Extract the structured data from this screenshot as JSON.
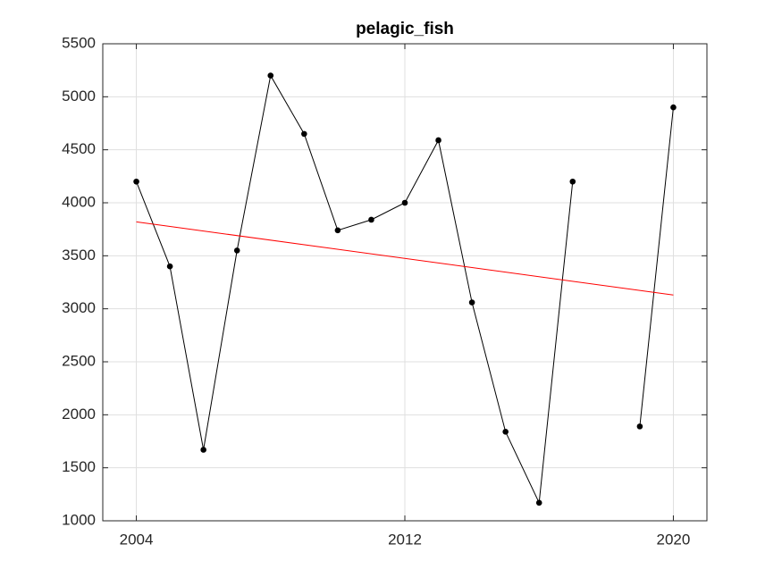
{
  "chart_data": {
    "type": "line",
    "title": "pelagic_fish",
    "x": [
      2004,
      2005,
      2006,
      2007,
      2008,
      2009,
      2010,
      2011,
      2012,
      2013,
      2014,
      2015,
      2016,
      2017,
      2018,
      2019,
      2020
    ],
    "series": [
      {
        "color": "#000000",
        "marker": true,
        "values": [
          4200,
          3400,
          1670,
          3550,
          5200,
          4650,
          3740,
          3840,
          4000,
          4590,
          3060,
          1840,
          1170,
          4200,
          null,
          1890,
          4900
        ]
      },
      {
        "color": "#ff0000",
        "marker": false,
        "x": [
          2004,
          2020
        ],
        "values": [
          3820,
          3130
        ]
      }
    ],
    "xlim": [
      2003,
      2021
    ],
    "xticks": [
      2004,
      2012,
      2020
    ],
    "ylim": [
      1000,
      5500
    ],
    "yticks": [
      1000,
      1500,
      2000,
      2500,
      3000,
      3500,
      4000,
      4500,
      5000,
      5500
    ],
    "grid": true
  }
}
